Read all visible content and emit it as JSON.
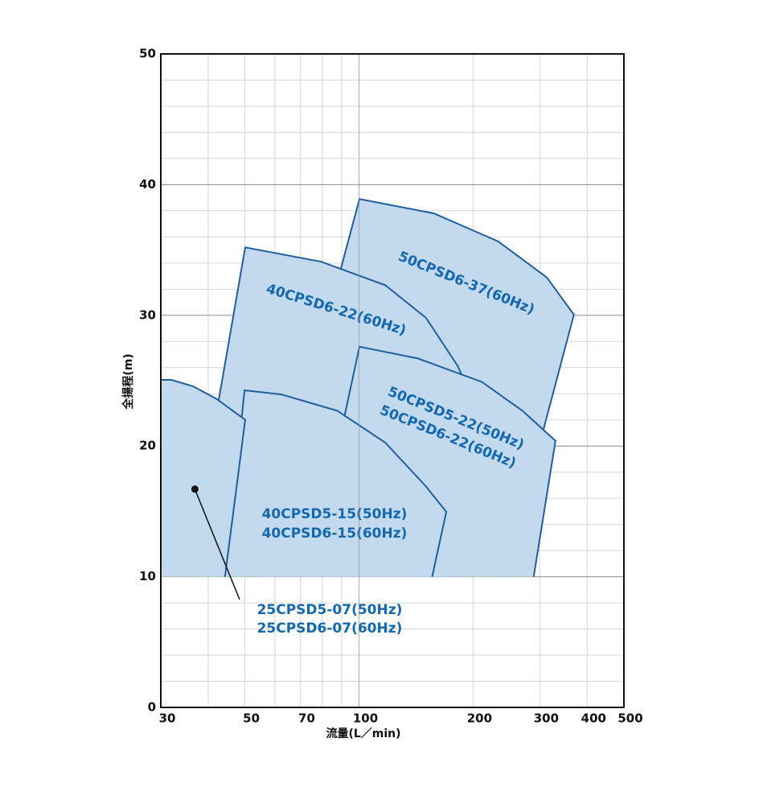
{
  "chart_data": {
    "type": "region",
    "x_label": "流量(L／min)",
    "y_label": "全揚程(m)",
    "xlog": true,
    "xlim": [
      30,
      500
    ],
    "xticks": [
      30,
      50,
      70,
      100,
      200,
      300,
      400,
      500
    ],
    "x_minor_grid": [
      40,
      60,
      80,
      90
    ],
    "ylim": [
      0,
      50
    ],
    "yticks": [
      0,
      10,
      20,
      30,
      40,
      50
    ],
    "y_minor_grid": [
      2,
      4,
      6,
      8,
      12,
      14,
      16,
      18,
      22,
      24,
      26,
      28,
      32,
      34,
      36,
      38,
      42,
      44,
      46,
      48
    ],
    "color": "#c3daee",
    "line_color": "#1f5f9e",
    "label_color": "#1468ad",
    "series": [
      {
        "labels": [
          "50CPSD6-37(60Hz)"
        ],
        "x": [
          54.3,
          100.3,
          157.5,
          233,
          313,
          369,
          242
        ],
        "y": [
          10,
          38.9,
          37.8,
          35.65,
          32.9,
          30.05,
          10
        ]
      },
      {
        "labels": [
          "40CPSD6-22(60Hz)"
        ],
        "x": [
          35.4,
          50.1,
          79.5,
          117.3,
          150.3,
          182.4,
          201,
          174
        ],
        "y": [
          10,
          35.2,
          34.1,
          32.3,
          29.8,
          26.1,
          23.3,
          10
        ]
      },
      {
        "labels": [
          "50CPSD5-22(50Hz)",
          "50CPSD6-22(60Hz)"
        ],
        "x": [
          74.2,
          100.3,
          143,
          211,
          270,
          330,
          289
        ],
        "y": [
          10,
          27.6,
          26.7,
          24.9,
          22.7,
          20.4,
          10
        ]
      },
      {
        "labels": [
          "40CPSD5-15(50Hz)",
          "40CPSD6-15(60Hz)"
        ],
        "x": [
          44.3,
          49.9,
          62.4,
          87.7,
          117.3,
          150.3,
          170,
          156
        ],
        "y": [
          10,
          24.26,
          23.95,
          22.7,
          20.26,
          16.9,
          14.96,
          10
        ]
      },
      {
        "labels": [
          "25CPSD5-07(50Hz)",
          "25CPSD6-07(60Hz)"
        ],
        "x": [
          30,
          30,
          32,
          36.5,
          42.1,
          50.1,
          44.3
        ],
        "y": [
          10,
          25.06,
          25.06,
          24.57,
          23.6,
          22.0,
          10
        ]
      }
    ],
    "annotation_point": {
      "x": 36.9,
      "y": 16.7
    }
  }
}
